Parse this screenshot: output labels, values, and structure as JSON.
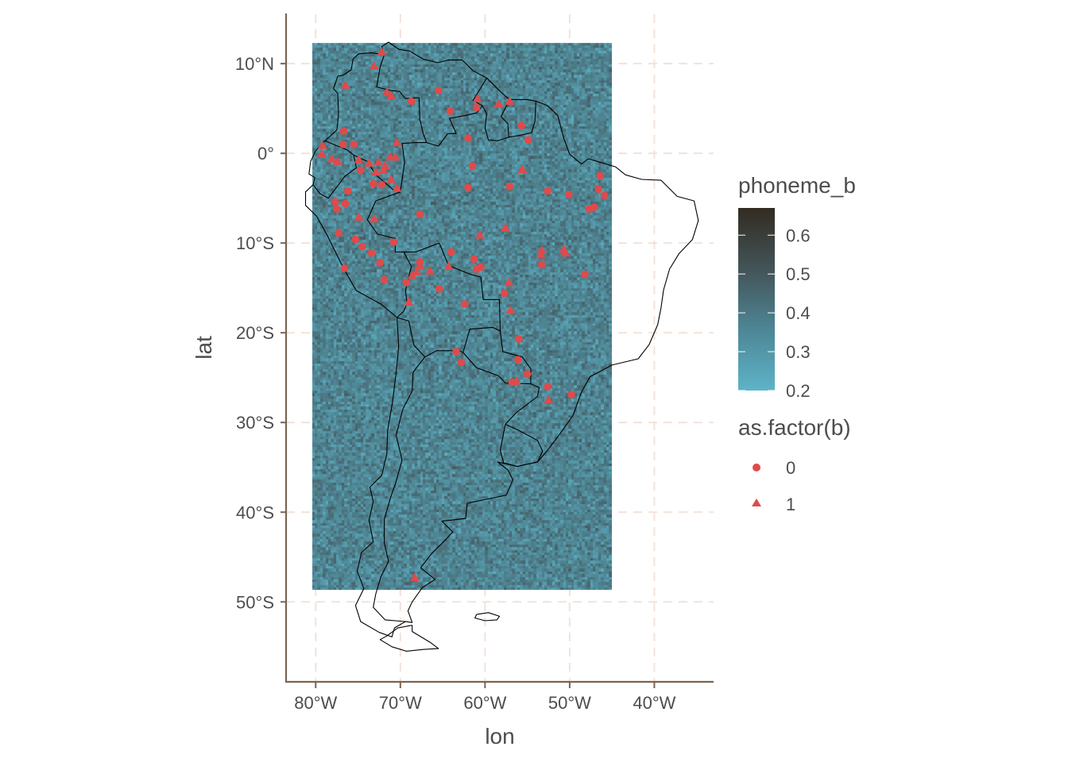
{
  "chart_data": {
    "type": "map",
    "xlabel": "lon",
    "ylabel": "lat",
    "xlim": [
      -83.5,
      -33
    ],
    "ylim": [
      -59,
      15.5
    ],
    "x_ticks": [
      {
        "value": -80,
        "label": "80°W"
      },
      {
        "value": -70,
        "label": "70°W"
      },
      {
        "value": -60,
        "label": "60°W"
      },
      {
        "value": -50,
        "label": "50°W"
      },
      {
        "value": -40,
        "label": "40°W"
      }
    ],
    "y_ticks": [
      {
        "value": 10,
        "label": "10°N"
      },
      {
        "value": 0,
        "label": "0°"
      },
      {
        "value": -10,
        "label": "10°S"
      },
      {
        "value": -20,
        "label": "20°S"
      },
      {
        "value": -30,
        "label": "30°S"
      },
      {
        "value": -40,
        "label": "40°S"
      },
      {
        "value": -50,
        "label": "50°S"
      }
    ],
    "raster": {
      "variable": "phoneme_b",
      "lon_range": [
        -80.4,
        -45
      ],
      "lat_range": [
        -48.7,
        12.3
      ],
      "value_range": [
        0.2,
        0.67
      ],
      "mean": 0.33
    },
    "colorbar": {
      "title": "phoneme_b",
      "ticks": [
        0.2,
        0.3,
        0.4,
        0.5,
        0.6
      ],
      "low_color": "#5eb3c8",
      "high_color": "#332b22"
    },
    "shape_legend": {
      "title": "as.factor(b)",
      "entries": [
        {
          "label": "0",
          "shape": "circle"
        },
        {
          "label": "1",
          "shape": "triangle"
        }
      ]
    },
    "point_color": "#e04a4a",
    "series": [
      {
        "name": "0",
        "points": [
          [
            -65.5,
            7
          ],
          [
            -64.1,
            4.7
          ],
          [
            -61,
            5.1
          ],
          [
            -68.7,
            5.8
          ],
          [
            -62,
            1.7
          ],
          [
            -55.7,
            3.1
          ],
          [
            -54.9,
            1.5
          ],
          [
            -76.7,
            2.5
          ],
          [
            -76.8,
            1
          ],
          [
            -75.5,
            1
          ],
          [
            -74.7,
            -1.9
          ],
          [
            -73.2,
            -3.4
          ],
          [
            -72.2,
            -3.5
          ],
          [
            -76.2,
            -4.2
          ],
          [
            -77.7,
            -5.4
          ],
          [
            -76.5,
            -5.6
          ],
          [
            -77.5,
            -6.2
          ],
          [
            -67.7,
            -6.8
          ],
          [
            -62,
            -3.8
          ],
          [
            -61.5,
            -1.4
          ],
          [
            -57.1,
            -3.7
          ],
          [
            -52.6,
            -4.2
          ],
          [
            -50.1,
            -4.6
          ],
          [
            -46.4,
            -2.5
          ],
          [
            -46.6,
            -4
          ],
          [
            -45.9,
            -4.7
          ],
          [
            -47.1,
            -6
          ],
          [
            -47.7,
            -6.2
          ],
          [
            -77.3,
            -8.9
          ],
          [
            -75.3,
            -9.6
          ],
          [
            -74.5,
            -10.4
          ],
          [
            -73.4,
            -11.1
          ],
          [
            -72.4,
            -12.2
          ],
          [
            -71.9,
            -14.1
          ],
          [
            -70.8,
            -9.9
          ],
          [
            -76.6,
            -12.8
          ],
          [
            -69.3,
            -14.4
          ],
          [
            -67.7,
            -12.1
          ],
          [
            -65.4,
            -15.1
          ],
          [
            -64,
            -11
          ],
          [
            -61.3,
            -11.8
          ],
          [
            -61,
            -12.9
          ],
          [
            -60.5,
            -12.7
          ],
          [
            -53.3,
            -12.4
          ],
          [
            -48.2,
            -13.5
          ],
          [
            -62.4,
            -16.8
          ],
          [
            -57.7,
            -15.6
          ],
          [
            -56,
            -20.7
          ],
          [
            -56.1,
            -23
          ],
          [
            -55,
            -24.6
          ],
          [
            -56.8,
            -25.5
          ],
          [
            -52.6,
            -26
          ],
          [
            -49.8,
            -26.9
          ],
          [
            -63.4,
            -22.1
          ],
          [
            -62.8,
            -23.3
          ]
        ]
      },
      {
        "name": "1",
        "points": [
          [
            -72.2,
            11.3
          ],
          [
            -73.1,
            9.7
          ],
          [
            -76.5,
            7.6
          ],
          [
            -71.6,
            6.8
          ],
          [
            -71.1,
            6.4
          ],
          [
            -60.9,
            6.1
          ],
          [
            -58.4,
            5.5
          ],
          [
            -57.1,
            5.8
          ],
          [
            -79.2,
            0.9
          ],
          [
            -79.3,
            -0.1
          ],
          [
            -78.1,
            -0.6
          ],
          [
            -77.4,
            -0.9
          ],
          [
            -74.9,
            -0.7
          ],
          [
            -73.7,
            -1.1
          ],
          [
            -72.6,
            -1
          ],
          [
            -71.8,
            -1.4
          ],
          [
            -71.2,
            -0.4
          ],
          [
            -70.6,
            -0.4
          ],
          [
            -70.4,
            1.2
          ],
          [
            -72,
            -1.9
          ],
          [
            -72.9,
            -2.1
          ],
          [
            -74.9,
            -7.1
          ],
          [
            -73.1,
            -7.3
          ],
          [
            -70.4,
            -3.9
          ],
          [
            -71.1,
            -2.9
          ],
          [
            -67.7,
            -12.5
          ],
          [
            -68.1,
            -13.2
          ],
          [
            -68.6,
            -13.6
          ],
          [
            -66.5,
            -13.1
          ],
          [
            -64.3,
            -12.6
          ],
          [
            -60.6,
            -9.1
          ],
          [
            -57.6,
            -8.3
          ],
          [
            -55.6,
            -1.8
          ],
          [
            -53.3,
            -10.8
          ],
          [
            -53.4,
            -11.3
          ],
          [
            -50.7,
            -10.7
          ],
          [
            -50.5,
            -11.1
          ],
          [
            -57.2,
            -14.4
          ],
          [
            -57,
            -17.5
          ],
          [
            -69,
            -16.6
          ],
          [
            -56.3,
            -25.4
          ],
          [
            -52.5,
            -27.5
          ],
          [
            -68.3,
            -47.3
          ]
        ]
      }
    ]
  }
}
